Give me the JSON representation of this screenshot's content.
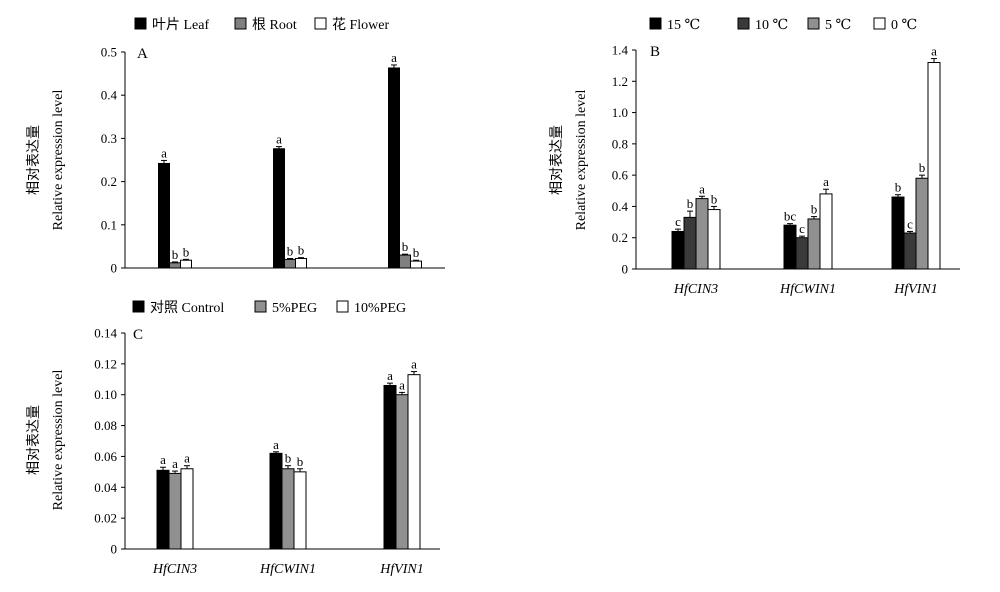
{
  "chart_data": [
    {
      "type": "bar",
      "panel_label": "A",
      "ylabel_cn": "相对表达量",
      "ylabel_en": "Relative expression level",
      "ylim": [
        0,
        0.5
      ],
      "yticks": [
        0,
        0.1,
        0.2,
        0.3,
        0.4,
        0.5
      ],
      "ytick_labels": [
        "0",
        "0.1",
        "0.2",
        "0.3",
        "0.4",
        "0.5"
      ],
      "categories": [
        "",
        "",
        ""
      ],
      "legend_position": "top",
      "series": [
        {
          "name": "叶片 Leaf",
          "color": "#000000",
          "values": [
            0.242,
            0.276,
            0.463
          ],
          "errors": [
            0.007,
            0.005,
            0.007
          ],
          "labels": [
            "a",
            "a",
            "a"
          ]
        },
        {
          "name": "根 Root",
          "color": "#808080",
          "values": [
            0.012,
            0.02,
            0.03
          ],
          "errors": [
            0.002,
            0.002,
            0.002
          ],
          "labels": [
            "b",
            "b",
            "b"
          ]
        },
        {
          "name": "花 Flower",
          "color": "#ffffff",
          "values": [
            0.018,
            0.022,
            0.016
          ],
          "errors": [
            0.002,
            0.002,
            0.002
          ],
          "labels": [
            "b",
            "b",
            "b"
          ]
        }
      ]
    },
    {
      "type": "bar",
      "panel_label": "B",
      "ylabel_cn": "相对表达量",
      "ylabel_en": "Relative expression level",
      "ylim": [
        0,
        1.4
      ],
      "yticks": [
        0,
        0.2,
        0.4,
        0.6,
        0.8,
        1.0,
        1.2,
        1.4
      ],
      "ytick_labels": [
        "0",
        "0.2",
        "0.4",
        "0.6",
        "0.8",
        "1.0",
        "1.2",
        "1.4"
      ],
      "categories": [
        "HfCIN3",
        "HfCWIN1",
        "HfVIN1"
      ],
      "legend_position": "top",
      "series": [
        {
          "name": "15 ℃",
          "color": "#000000",
          "values": [
            0.24,
            0.28,
            0.46
          ],
          "errors": [
            0.015,
            0.01,
            0.015
          ],
          "labels": [
            "c",
            "bc",
            "b"
          ]
        },
        {
          "name": "10 ℃",
          "color": "#3a3a3a",
          "values": [
            0.33,
            0.2,
            0.23
          ],
          "errors": [
            0.04,
            0.01,
            0.01
          ],
          "labels": [
            "b",
            "c",
            "c"
          ]
        },
        {
          "name": "5 ℃",
          "color": "#909090",
          "values": [
            0.45,
            0.32,
            0.58
          ],
          "errors": [
            0.015,
            0.015,
            0.02
          ],
          "labels": [
            "a",
            "b",
            "b"
          ]
        },
        {
          "name": "0 ℃",
          "color": "#ffffff",
          "values": [
            0.38,
            0.48,
            1.32
          ],
          "errors": [
            0.02,
            0.03,
            0.025
          ],
          "labels": [
            "b",
            "a",
            "a"
          ]
        }
      ]
    },
    {
      "type": "bar",
      "panel_label": "C",
      "ylabel_cn": "相对表达量",
      "ylabel_en": "Relative expression level",
      "ylim": [
        0,
        0.14
      ],
      "yticks": [
        0,
        0.02,
        0.04,
        0.06,
        0.08,
        0.1,
        0.12,
        0.14
      ],
      "ytick_labels": [
        "0",
        "0.02",
        "0.04",
        "0.06",
        "0.08",
        "0.10",
        "0.12",
        "0.14"
      ],
      "categories": [
        "HfCIN3",
        "HfCWIN1",
        "HfVIN1"
      ],
      "legend_position": "top",
      "series": [
        {
          "name": "对照 Control",
          "color": "#000000",
          "values": [
            0.051,
            0.062,
            0.106
          ],
          "errors": [
            0.002,
            0.001,
            0.0015
          ],
          "labels": [
            "a",
            "a",
            "a"
          ]
        },
        {
          "name": "5%PEG",
          "color": "#909090",
          "values": [
            0.049,
            0.052,
            0.1
          ],
          "errors": [
            0.0015,
            0.002,
            0.0015
          ],
          "labels": [
            "a",
            "b",
            "a"
          ]
        },
        {
          "name": "10%PEG",
          "color": "#ffffff",
          "values": [
            0.052,
            0.05,
            0.113
          ],
          "errors": [
            0.002,
            0.002,
            0.002
          ],
          "labels": [
            "a",
            "b",
            "a"
          ]
        }
      ]
    }
  ]
}
